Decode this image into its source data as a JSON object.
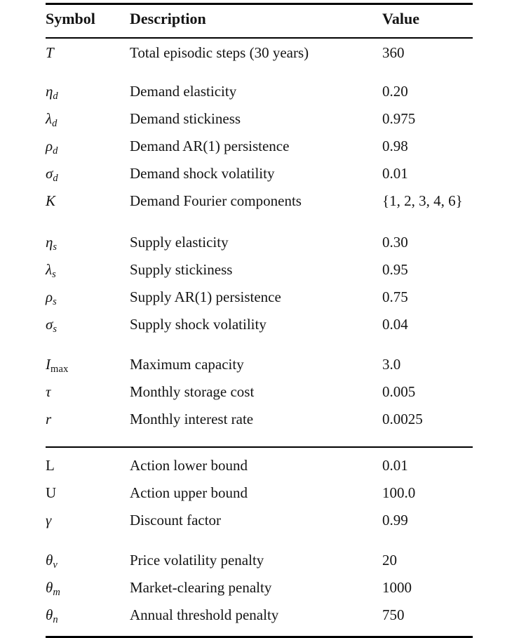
{
  "page": {
    "background": "#ffffff",
    "text_color": "#141414",
    "rule_color": "#000000"
  },
  "table": {
    "header": {
      "symbol": "Symbol",
      "description": "Description",
      "value": "Value"
    },
    "groups": [
      {
        "rows": [
          {
            "sym": "T",
            "sub": "",
            "desc": "Total episodic steps (30 years)",
            "val": "360"
          }
        ]
      },
      {
        "rows": [
          {
            "sym": "η",
            "sub": "d",
            "desc": "Demand elasticity",
            "val": "0.20"
          },
          {
            "sym": "λ",
            "sub": "d",
            "desc": "Demand stickiness",
            "val": "0.975"
          },
          {
            "sym": "ρ",
            "sub": "d",
            "desc": "Demand AR(1) persistence",
            "val": "0.98"
          },
          {
            "sym": "σ",
            "sub": "d",
            "desc": "Demand shock volatility",
            "val": "0.01"
          },
          {
            "sym": "K",
            "sub": "",
            "desc": "Demand Fourier components",
            "val": "{1, 2, 3, 4, 6}"
          }
        ]
      },
      {
        "rows": [
          {
            "sym": "η",
            "sub": "s",
            "desc": "Supply elasticity",
            "val": "0.30"
          },
          {
            "sym": "λ",
            "sub": "s",
            "desc": "Supply stickiness",
            "val": "0.95"
          },
          {
            "sym": "ρ",
            "sub": "s",
            "desc": "Supply AR(1) persistence",
            "val": "0.75"
          },
          {
            "sym": "σ",
            "sub": "s",
            "desc": "Supply shock volatility",
            "val": "0.04"
          }
        ]
      },
      {
        "rows": [
          {
            "sym": "I",
            "sub": "max",
            "desc": "Maximum capacity",
            "val": "3.0"
          },
          {
            "sym": "τ",
            "sub": "",
            "desc": "Monthly storage cost",
            "val": "0.005"
          },
          {
            "sym": "r",
            "sub": "",
            "desc": "Monthly interest rate",
            "val": "0.0025"
          }
        ]
      },
      {
        "rows": [
          {
            "sym": "L",
            "sub": "",
            "desc": "Action lower bound",
            "val": "0.01"
          },
          {
            "sym": "U",
            "sub": "",
            "desc": "Action upper bound",
            "val": "100.0"
          },
          {
            "sym": "γ",
            "sub": "",
            "desc": "Discount factor",
            "val": "0.99"
          }
        ]
      },
      {
        "rows": [
          {
            "sym": "θ",
            "sub": "v",
            "desc": "Price volatility penalty",
            "val": "20"
          },
          {
            "sym": "θ",
            "sub": "m",
            "desc": "Market-clearing penalty",
            "val": "1000"
          },
          {
            "sym": "θ",
            "sub": "n",
            "desc": "Annual threshold penalty",
            "val": "750"
          }
        ]
      }
    ]
  }
}
